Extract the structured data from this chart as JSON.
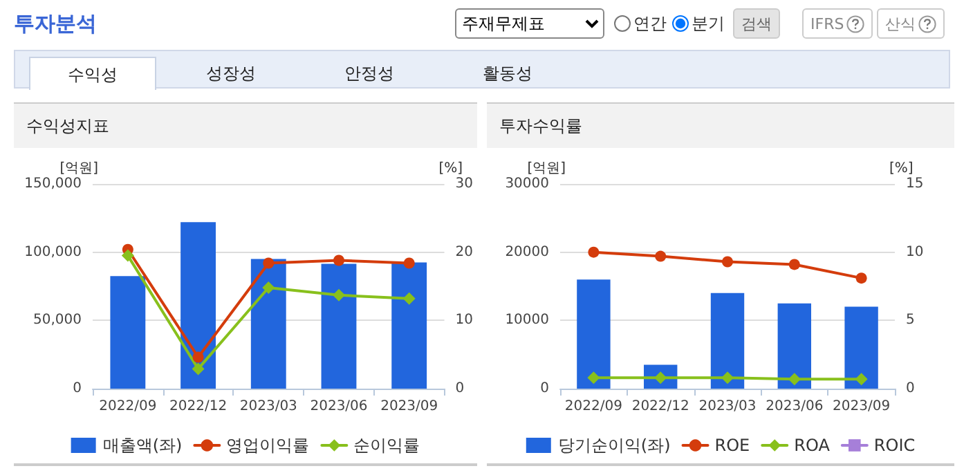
{
  "chart_data": [
    {
      "type": "other",
      "title": "투자분석",
      "annotations": [
        "주재무제표",
        "연간",
        "분기",
        "검색",
        "IFRS",
        "산식",
        "수익성",
        "성장성",
        "안정성",
        "활동성"
      ]
    },
    {
      "type": "bar",
      "title": "수익성지표",
      "categories": [
        "2022/09",
        "2022/12",
        "2023/03",
        "2023/06",
        "2023/09"
      ],
      "ylabel": "[억원]",
      "y2label": "[%]",
      "series": [
        {
          "name": "매출액(좌)",
          "type": "bar",
          "color": "#2266dd",
          "values": [
            82500,
            122000,
            95000,
            91500,
            92500
          ]
        },
        {
          "name": "영업이익률",
          "type": "line",
          "axis": "y2",
          "color": "#d43c0c",
          "marker": "circle",
          "values": [
            20.4,
            4.6,
            18.4,
            18.8,
            18.4
          ]
        },
        {
          "name": "순이익률",
          "type": "line",
          "axis": "y2",
          "color": "#88c01c",
          "marker": "diamond",
          "values": [
            19.5,
            2.9,
            14.8,
            13.7,
            13.2
          ]
        }
      ],
      "ylim": [
        0,
        150000
      ],
      "yticks": [
        {
          "value": 0,
          "label": "0"
        },
        {
          "value": 50000,
          "label": "50,000"
        },
        {
          "value": 100000,
          "label": "100,000"
        },
        {
          "value": 150000,
          "label": "150,000"
        }
      ],
      "y2lim": [
        0,
        30
      ],
      "y2ticks": [
        0,
        10,
        20,
        30
      ],
      "grid": "y",
      "legend": "bottom",
      "line_style": "solid"
    },
    {
      "type": "bar",
      "title": "투자수익률",
      "categories": [
        "2022/09",
        "2022/12",
        "2023/03",
        "2023/06",
        "2023/09"
      ],
      "ylabel": "[억원]",
      "y2label": "[%]",
      "series": [
        {
          "name": "당기순이익(좌)",
          "type": "bar",
          "color": "#2266dd",
          "values": [
            16000,
            3500,
            14000,
            12500,
            12000
          ]
        },
        {
          "name": "ROE",
          "type": "line",
          "axis": "y2",
          "color": "#d43c0c",
          "marker": "circle",
          "values": [
            10.0,
            9.7,
            9.3,
            9.1,
            8.1
          ]
        },
        {
          "name": "ROA",
          "type": "line",
          "axis": "y2",
          "color": "#88c01c",
          "marker": "diamond",
          "values": [
            0.8,
            0.8,
            0.8,
            0.7,
            0.7
          ]
        },
        {
          "name": "ROIC",
          "type": "line",
          "axis": "y2",
          "color": "#a67fd9",
          "marker": "square",
          "values": [
            null,
            null,
            null,
            null,
            null
          ]
        }
      ],
      "ylim": [
        0,
        30000
      ],
      "yticks": [
        0,
        10000,
        20000,
        30000
      ],
      "y2lim": [
        0,
        15
      ],
      "y2ticks": [
        0,
        5,
        10,
        15
      ],
      "grid": "y",
      "legend": "bottom",
      "line_style": "solid"
    }
  ]
}
